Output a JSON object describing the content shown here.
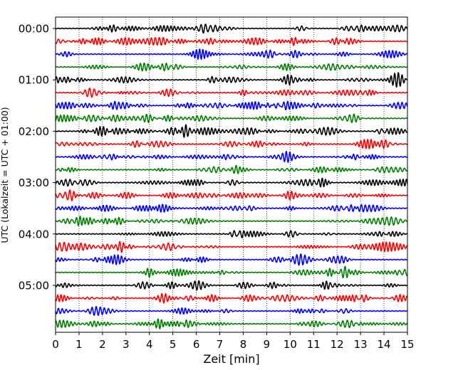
{
  "chart_data": {
    "type": "line",
    "subtype": "helicorder",
    "title": "",
    "xlabel": "Zeit  [min]",
    "ylabel": "UTC (Lokalzeit = UTC + 01:00)",
    "xlim": [
      0,
      15
    ],
    "x_ticks": [
      "0",
      "1",
      "2",
      "3",
      "4",
      "5",
      "6",
      "7",
      "8",
      "9",
      "10",
      "11",
      "12",
      "13",
      "14",
      "15"
    ],
    "y_tick_labels": [
      "00:00",
      "01:00",
      "02:00",
      "03:00",
      "04:00",
      "05:00"
    ],
    "trace_minutes": 15,
    "trace_count": 24,
    "trace_colors": [
      "#000000",
      "#ff0000",
      "#0000ff",
      "#008000"
    ],
    "vertical_grid": "dotted",
    "legend": "none"
  }
}
